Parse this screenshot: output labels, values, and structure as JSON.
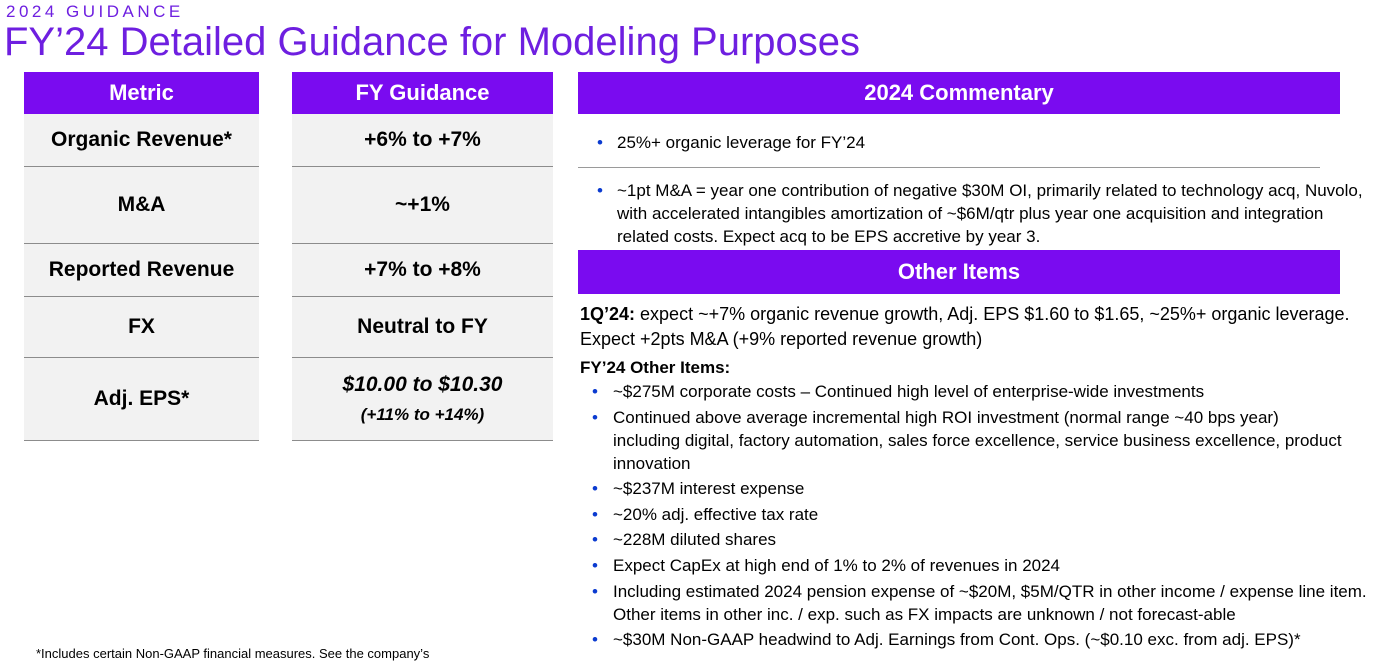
{
  "header": {
    "eyebrow": "2024 GUIDANCE",
    "title": "FY’24 Detailed Guidance for Modeling Purposes"
  },
  "table": {
    "metric_header": "Metric",
    "guidance_header": "FY Guidance",
    "rows": [
      {
        "metric": "Organic Revenue*",
        "guidance": "+6% to +7%"
      },
      {
        "metric": "M&A",
        "guidance": "~+1%"
      },
      {
        "metric": "Reported Revenue",
        "guidance": "+7% to +8%"
      },
      {
        "metric": "FX",
        "guidance": "Neutral to FY"
      },
      {
        "metric": "Adj. EPS*",
        "guidance": "$10.00 to $10.30",
        "guidance_sub": "(+11% to +14%)"
      }
    ]
  },
  "commentary": {
    "header": "2024 Commentary",
    "bullets": [
      "25%+ organic leverage  for FY’24",
      "~1pt M&A = year one contribution of negative $30M OI, primarily related to technology acq, Nuvolo, with accelerated intangibles amortization of ~$6M/qtr plus year one acquisition and integration related costs.  Expect acq to be EPS accretive by year 3."
    ]
  },
  "other_items": {
    "header": "Other Items",
    "q1_label": "1Q’24:",
    "q1_text": " expect ~+7% organic revenue growth, Adj. EPS $1.60 to $1.65, ~25%+ organic leverage.  Expect +2pts M&A (+9% reported revenue growth)",
    "fy_label": "FY’24 Other Items:",
    "bullets": [
      "~$275M corporate costs – Continued high level of enterprise-wide investments",
      "Continued above average incremental high ROI investment (normal range ~40 bps year) including digital, factory automation, sales force excellence, service business excellence, product innovation",
      "~$237M interest expense",
      "~20% adj. effective tax rate",
      "~228M diluted shares",
      "Expect CapEx at high end of 1% to 2% of revenues in 2024",
      "Including estimated 2024 pension expense of ~$20M, $5M/QTR in other income / expense line item. Other items in other inc. / exp. such as FX impacts are unknown / not forecast-able",
      "~$30M Non-GAAP headwind to Adj. Earnings from Cont. Ops. (~$0.10 exc. from adj. EPS)*"
    ]
  },
  "footnote": "*Includes certain Non-GAAP financial measures. See the company’s",
  "bullet_glyph": "•",
  "colors": {
    "accent": "#7a0bf0",
    "title": "#6e1fe0",
    "cell_bg": "#f2f2f2",
    "bullet": "#0b3bd0"
  }
}
